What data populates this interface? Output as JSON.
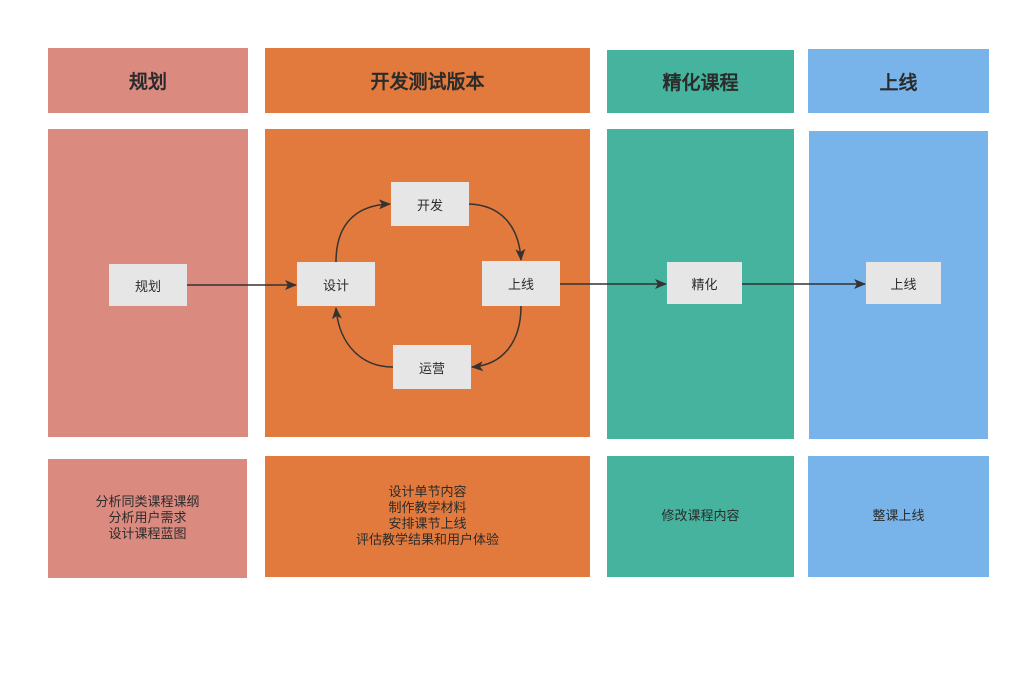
{
  "colors": {
    "plan": "#db8a80",
    "develop": "#e27a3d",
    "refine": "#45b39d",
    "launch": "#78b3ea",
    "node": "#e6e6e6",
    "arrow": "#333333"
  },
  "columns": {
    "plan": {
      "header": "规划",
      "node": "规划",
      "desc": [
        "分析同类课程课纲",
        "分析用户需求",
        "设计课程蓝图"
      ]
    },
    "develop": {
      "header": "开发测试版本",
      "nodes": {
        "design": "设计",
        "develop": "开发",
        "launch": "上线",
        "operate": "运营"
      },
      "desc": [
        "设计单节内容",
        "制作教学材料",
        "安排课节上线",
        "评估教学结果和用户体验"
      ]
    },
    "refine": {
      "header": "精化课程",
      "node": "精化",
      "desc": [
        "修改课程内容"
      ]
    },
    "launch": {
      "header": "上线",
      "node": "上线",
      "desc": [
        "整课上线"
      ]
    }
  }
}
